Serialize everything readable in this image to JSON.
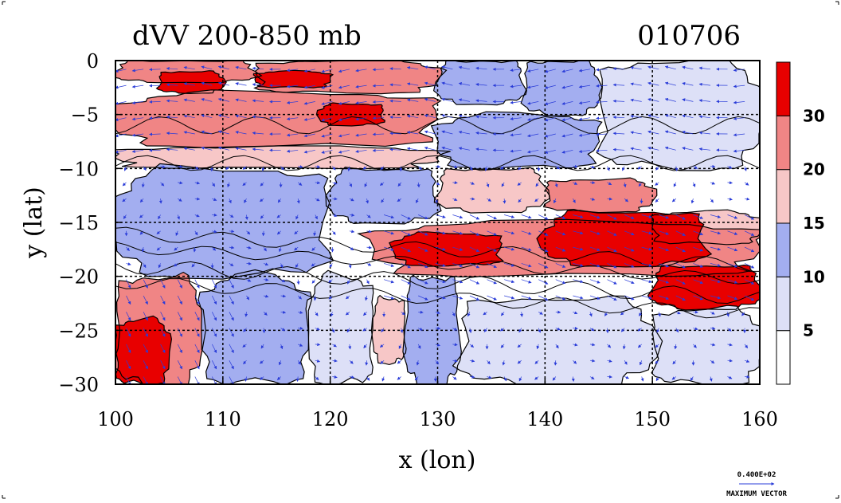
{
  "chart_data": {
    "type": "heatmap",
    "title": "dVV 200-850 mb",
    "date_label": "010706",
    "xlabel": "x (lon)",
    "ylabel": "y (lat)",
    "xlim": [
      100,
      160
    ],
    "ylim": [
      -30,
      0
    ],
    "x_ticks": [
      100,
      110,
      120,
      130,
      140,
      150,
      160
    ],
    "y_ticks": [
      0,
      -5,
      -10,
      -15,
      -20,
      -25,
      -30
    ],
    "x_tick_labels": [
      "100",
      "110",
      "120",
      "130",
      "140",
      "150",
      "160"
    ],
    "y_tick_labels": [
      "0",
      "−5",
      "−10",
      "−15",
      "−20",
      "−25",
      "−30"
    ],
    "grid": true,
    "colorbar": {
      "levels": [
        5,
        10,
        15,
        20,
        30
      ],
      "labels": [
        "5",
        "10",
        "15",
        "20",
        "30"
      ],
      "colors": [
        "#ffffff",
        "#dde0f7",
        "#a3aef0",
        "#f7c7c7",
        "#f08585",
        "#e80000"
      ]
    },
    "reference_vector": {
      "value_label": "0.400E+02",
      "caption": "MAXIMUM VECTOR"
    },
    "vector_color": "#2a3cd8",
    "regions": [
      {
        "lon": [
          100,
          113
        ],
        "lat": [
          0,
          -2
        ],
        "value": 25
      },
      {
        "lon": [
          104,
          110
        ],
        "lat": [
          -1,
          -3
        ],
        "value": 32
      },
      {
        "lon": [
          113,
          130
        ],
        "lat": [
          0,
          -3
        ],
        "value": 27
      },
      {
        "lon": [
          113,
          120
        ],
        "lat": [
          -1,
          -2.5
        ],
        "value": 31
      },
      {
        "lon": [
          100,
          130
        ],
        "lat": [
          -3,
          -8
        ],
        "value": 22
      },
      {
        "lon": [
          119,
          125
        ],
        "lat": [
          -4,
          -6
        ],
        "value": 32
      },
      {
        "lon": [
          130,
          138
        ],
        "lat": [
          0,
          -4
        ],
        "value": 14
      },
      {
        "lon": [
          138,
          145
        ],
        "lat": [
          0,
          -5
        ],
        "value": 12
      },
      {
        "lon": [
          145,
          160
        ],
        "lat": [
          0,
          -10
        ],
        "value": 7
      },
      {
        "lon": [
          100,
          130
        ],
        "lat": [
          -8,
          -10
        ],
        "value": 17
      },
      {
        "lon": [
          130,
          145
        ],
        "lat": [
          -5,
          -10
        ],
        "value": 12
      },
      {
        "lon": [
          100,
          120
        ],
        "lat": [
          -10,
          -20
        ],
        "value": 12
      },
      {
        "lon": [
          120,
          130
        ],
        "lat": [
          -10,
          -15
        ],
        "value": 12
      },
      {
        "lon": [
          130,
          140
        ],
        "lat": [
          -10,
          -14
        ],
        "value": 17
      },
      {
        "lon": [
          140,
          150
        ],
        "lat": [
          -11,
          -14
        ],
        "value": 21
      },
      {
        "lon": [
          150,
          160
        ],
        "lat": [
          -14,
          -17
        ],
        "value": 17
      },
      {
        "lon": [
          124,
          160
        ],
        "lat": [
          -15,
          -20
        ],
        "value": 24
      },
      {
        "lon": [
          126,
          136
        ],
        "lat": [
          -16,
          -19
        ],
        "value": 31
      },
      {
        "lon": [
          140,
          155
        ],
        "lat": [
          -14,
          -19
        ],
        "value": 32
      },
      {
        "lon": [
          150,
          160
        ],
        "lat": [
          -19,
          -23
        ],
        "value": 31
      },
      {
        "lon": [
          100,
          108
        ],
        "lat": [
          -20,
          -30
        ],
        "value": 25
      },
      {
        "lon": [
          100,
          105
        ],
        "lat": [
          -24,
          -30
        ],
        "value": 33
      },
      {
        "lon": [
          108,
          118
        ],
        "lat": [
          -20,
          -30
        ],
        "value": 11
      },
      {
        "lon": [
          118,
          124
        ],
        "lat": [
          -20,
          -30
        ],
        "value": 7
      },
      {
        "lon": [
          124,
          127
        ],
        "lat": [
          -22,
          -28
        ],
        "value": 18
      },
      {
        "lon": [
          127,
          132
        ],
        "lat": [
          -20,
          -30
        ],
        "value": 12
      },
      {
        "lon": [
          132,
          150
        ],
        "lat": [
          -22,
          -30
        ],
        "value": 7
      },
      {
        "lon": [
          150,
          160
        ],
        "lat": [
          -23,
          -30
        ],
        "value": 9
      }
    ]
  }
}
